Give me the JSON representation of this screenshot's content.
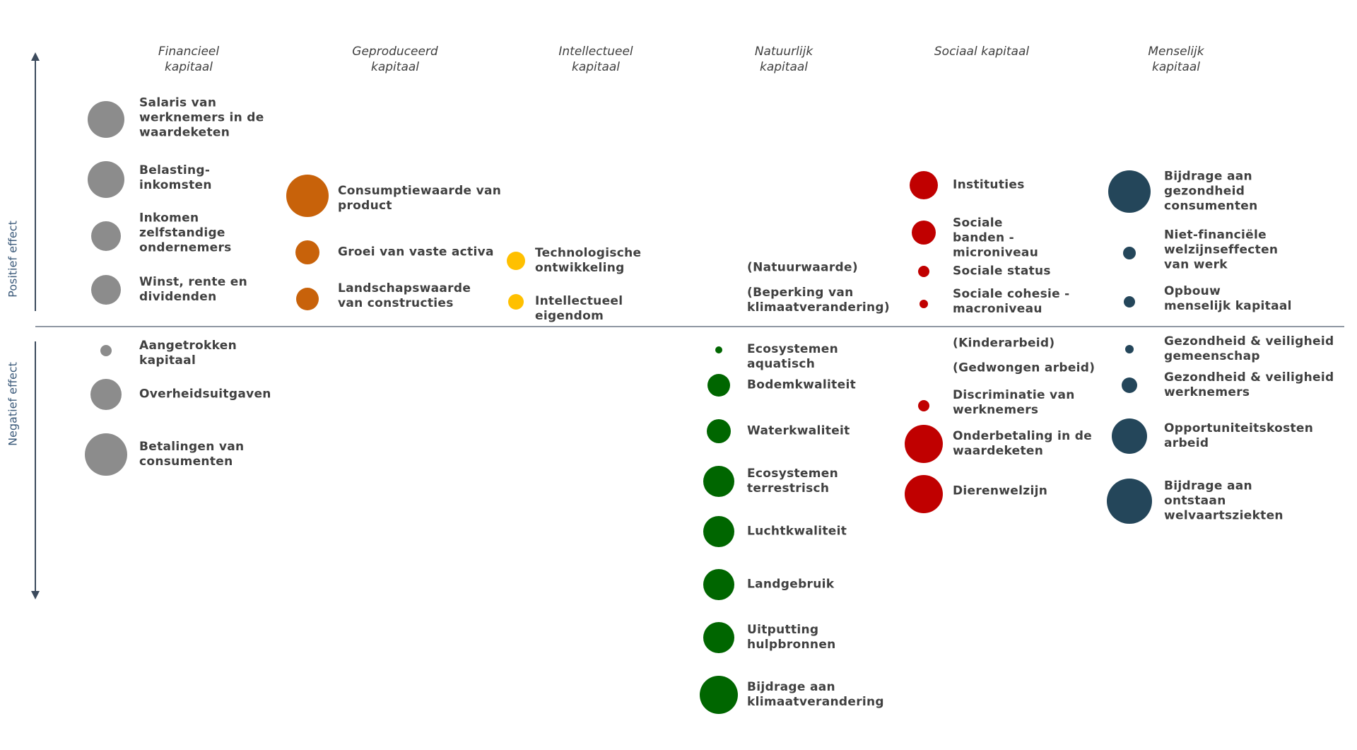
{
  "axis": {
    "positive_label": "Positief effect",
    "negative_label": "Negatief effect"
  },
  "colors": {
    "financieel": "#8c8c8c",
    "geproduceerd": "#c8620a",
    "intellectueel": "#ffc000",
    "natuurlijk": "#006600",
    "sociaal": "#c00000",
    "menselijk": "#24465a"
  },
  "columns": [
    {
      "key": "financieel",
      "title": "Financieel\nkapitaal"
    },
    {
      "key": "geproduceerd",
      "title": "Geproduceerd\nkapitaal"
    },
    {
      "key": "intellectueel",
      "title": "Intellectueel\nkapitaal"
    },
    {
      "key": "natuurlijk",
      "title": "Natuurlijk\nkapitaal"
    },
    {
      "key": "sociaal",
      "title": "Sociaal kapitaal"
    },
    {
      "key": "menselijk",
      "title": "Menselijk\nkapitaal"
    }
  ],
  "items": [
    {
      "column": "financieel",
      "effect": "positive",
      "label": "Salaris van\nwerknemers in de\nwaardeketen",
      "bubble": true
    },
    {
      "column": "financieel",
      "effect": "positive",
      "label": "Belasting-\ninkomsten",
      "bubble": true
    },
    {
      "column": "financieel",
      "effect": "positive",
      "label": "Inkomen\nzelfstandige\nondernemers",
      "bubble": true
    },
    {
      "column": "financieel",
      "effect": "positive",
      "label": "Winst, rente en\ndividenden",
      "bubble": true
    },
    {
      "column": "financieel",
      "effect": "negative",
      "label": "Aangetrokken\nkapitaal",
      "bubble": true
    },
    {
      "column": "financieel",
      "effect": "negative",
      "label": "Overheidsuitgaven",
      "bubble": true
    },
    {
      "column": "financieel",
      "effect": "negative",
      "label": "Betalingen van\nconsumenten",
      "bubble": true
    },
    {
      "column": "geproduceerd",
      "effect": "positive",
      "label": "Consumptiewaarde van\nproduct",
      "bubble": true
    },
    {
      "column": "geproduceerd",
      "effect": "positive",
      "label": "Groei van vaste activa",
      "bubble": true
    },
    {
      "column": "geproduceerd",
      "effect": "positive",
      "label": "Landschapswaarde\nvan constructies",
      "bubble": true
    },
    {
      "column": "intellectueel",
      "effect": "positive",
      "label": "Technologische\nontwikkeling",
      "bubble": true
    },
    {
      "column": "intellectueel",
      "effect": "positive",
      "label": "Intellectueel\neigendom",
      "bubble": true
    },
    {
      "column": "natuurlijk",
      "effect": "positive",
      "label": "(Natuurwaarde)",
      "bubble": false
    },
    {
      "column": "natuurlijk",
      "effect": "positive",
      "label": "(Beperking van\nklimaatverandering)",
      "bubble": false
    },
    {
      "column": "natuurlijk",
      "effect": "negative",
      "label": "Ecosystemen\naquatisch",
      "bubble": true
    },
    {
      "column": "natuurlijk",
      "effect": "negative",
      "label": "Bodemkwaliteit",
      "bubble": true
    },
    {
      "column": "natuurlijk",
      "effect": "negative",
      "label": "Waterkwaliteit",
      "bubble": true
    },
    {
      "column": "natuurlijk",
      "effect": "negative",
      "label": "Ecosystemen\nterrestrisch",
      "bubble": true
    },
    {
      "column": "natuurlijk",
      "effect": "negative",
      "label": "Luchtkwaliteit",
      "bubble": true
    },
    {
      "column": "natuurlijk",
      "effect": "negative",
      "label": "Landgebruik",
      "bubble": true
    },
    {
      "column": "natuurlijk",
      "effect": "negative",
      "label": "Uitputting\nhulpbronnen",
      "bubble": true
    },
    {
      "column": "natuurlijk",
      "effect": "negative",
      "label": "Bijdrage aan\nklimaatverandering",
      "bubble": true
    },
    {
      "column": "sociaal",
      "effect": "positive",
      "label": "Instituties",
      "bubble": true
    },
    {
      "column": "sociaal",
      "effect": "positive",
      "label": "Sociale\nbanden -\nmicroniveau",
      "bubble": true
    },
    {
      "column": "sociaal",
      "effect": "positive",
      "label": "Sociale status",
      "bubble": true
    },
    {
      "column": "sociaal",
      "effect": "positive",
      "label": "Sociale cohesie -\nmacroniveau",
      "bubble": true
    },
    {
      "column": "sociaal",
      "effect": "negative",
      "label": "(Kinderarbeid)",
      "bubble": false
    },
    {
      "column": "sociaal",
      "effect": "negative",
      "label": "(Gedwongen arbeid)",
      "bubble": false
    },
    {
      "column": "sociaal",
      "effect": "negative",
      "label": "Discriminatie van\nwerknemers",
      "bubble": true
    },
    {
      "column": "sociaal",
      "effect": "negative",
      "label": "Onderbetaling in de\nwaardeketen",
      "bubble": true
    },
    {
      "column": "sociaal",
      "effect": "negative",
      "label": "Dierenwelzijn",
      "bubble": true
    },
    {
      "column": "menselijk",
      "effect": "positive",
      "label": "Bijdrage aan\ngezondheid\nconsumenten",
      "bubble": true
    },
    {
      "column": "menselijk",
      "effect": "positive",
      "label": "Niet-financiële\nwelzijnseffecten\nvan werk",
      "bubble": true
    },
    {
      "column": "menselijk",
      "effect": "positive",
      "label": "Opbouw\nmenselijk kapitaal",
      "bubble": true
    },
    {
      "column": "menselijk",
      "effect": "negative",
      "label": "Gezondheid & veiligheid\ngemeenschap",
      "bubble": true
    },
    {
      "column": "menselijk",
      "effect": "negative",
      "label": "Gezondheid & veiligheid\nwerknemers",
      "bubble": true
    },
    {
      "column": "menselijk",
      "effect": "negative",
      "label": "Opportuniteitskosten\narbeid",
      "bubble": true
    },
    {
      "column": "menselijk",
      "effect": "negative",
      "label": "Bijdrage aan\nontstaan\nwelvaartsziekten",
      "bubble": true
    }
  ]
}
